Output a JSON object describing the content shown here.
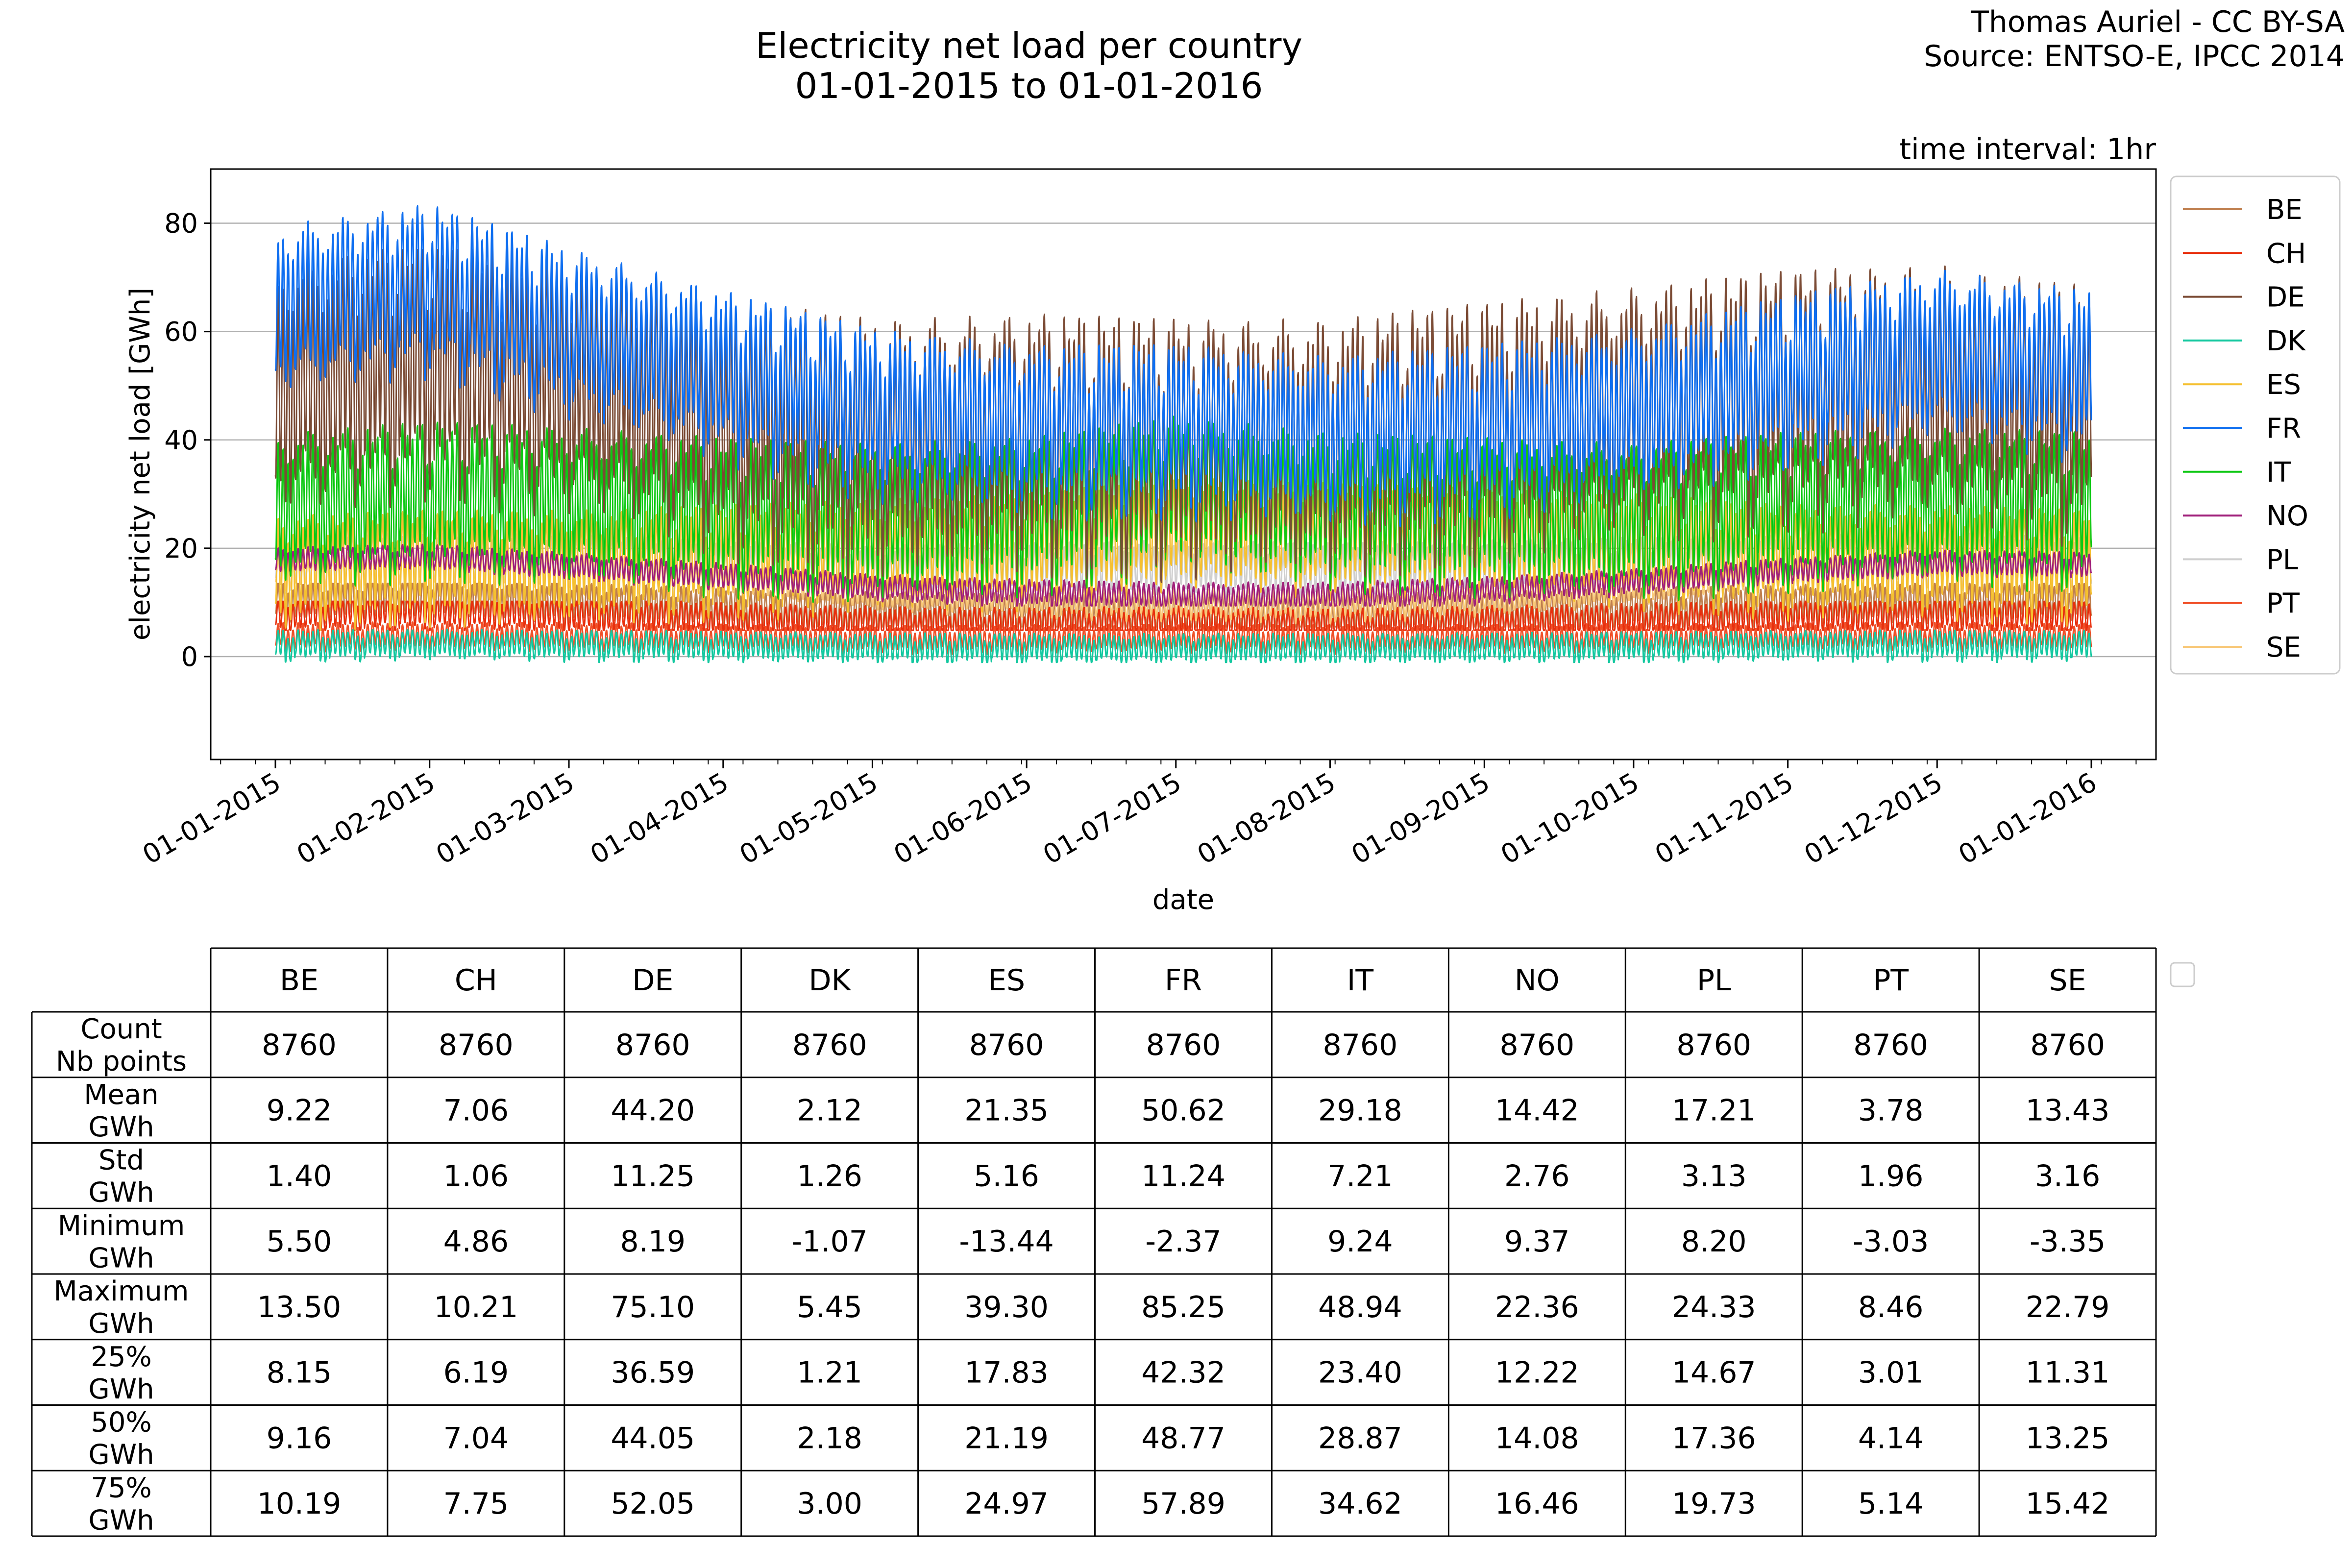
{
  "chart_data": {
    "type": "line",
    "title": "Electricity net load per country",
    "subtitle": "01-01-2015 to 01-01-2016",
    "credit": [
      "Thomas Auriel - CC BY-SA",
      "Source: ENTSO-E, IPCC 2014"
    ],
    "interval_note": "time interval: 1hr",
    "xlabel": "date",
    "ylabel": "electricity net load [GWh]",
    "xlim": [
      "2014-12-19",
      "2016-01-14"
    ],
    "ylim": [
      -19,
      90
    ],
    "yticks": [
      0,
      20,
      40,
      60,
      80
    ],
    "xticks": [
      "01-01-2015",
      "01-02-2015",
      "01-03-2015",
      "01-04-2015",
      "01-05-2015",
      "01-06-2015",
      "01-07-2015",
      "01-08-2015",
      "01-09-2015",
      "01-10-2015",
      "01-11-2015",
      "01-12-2015",
      "01-01-2016"
    ],
    "grid": "horizontal",
    "legend_position": "right",
    "series": [
      {
        "name": "BE",
        "color": "#bf7f4e",
        "x": [
          "2015-01-01",
          "2015-02-01",
          "2015-03-01",
          "2015-04-01",
          "2015-05-01",
          "2015-06-01",
          "2015-07-01",
          "2015-08-01",
          "2015-09-01",
          "2015-10-01",
          "2015-11-01",
          "2015-12-01",
          "2016-01-01"
        ],
        "values": [
          10.5,
          11,
          10.2,
          9.4,
          8.6,
          8.3,
          8.5,
          8.1,
          8.7,
          9.3,
          9.9,
          10.3,
          10.4
        ],
        "amplitude": 3,
        "min": 5.5,
        "max": 13.5
      },
      {
        "name": "CH",
        "color": "#e8300e",
        "x": [
          "2015-01-01",
          "2015-02-01",
          "2015-03-01",
          "2015-04-01",
          "2015-05-01",
          "2015-06-01",
          "2015-07-01",
          "2015-08-01",
          "2015-09-01",
          "2015-10-01",
          "2015-11-01",
          "2015-12-01",
          "2016-01-01"
        ],
        "values": [
          8,
          8.5,
          8,
          7.2,
          6.5,
          6.2,
          6.5,
          6,
          6.6,
          7,
          7.6,
          8,
          7.6
        ],
        "amplitude": 2.5,
        "min": 4.86,
        "max": 10.21
      },
      {
        "name": "DE",
        "color": "#7b4b35",
        "x": [
          "2015-01-01",
          "2015-02-01",
          "2015-03-01",
          "2015-04-01",
          "2015-05-01",
          "2015-06-01",
          "2015-07-01",
          "2015-08-01",
          "2015-09-01",
          "2015-10-01",
          "2015-11-01",
          "2015-12-01",
          "2016-01-01"
        ],
        "values": [
          52,
          57,
          53,
          46,
          42,
          43,
          42,
          42,
          45,
          48,
          51,
          52,
          48
        ],
        "amplitude": 18,
        "min": 8.19,
        "max": 75.1
      },
      {
        "name": "DK",
        "color": "#14c8a0",
        "x": [
          "2015-01-01",
          "2015-02-01",
          "2015-03-01",
          "2015-04-01",
          "2015-05-01",
          "2015-06-01",
          "2015-07-01",
          "2015-08-01",
          "2015-09-01",
          "2015-10-01",
          "2015-11-01",
          "2015-12-01",
          "2016-01-01"
        ],
        "values": [
          2.4,
          2.6,
          2.4,
          2.2,
          1.9,
          1.8,
          1.8,
          1.8,
          1.9,
          2.1,
          2.3,
          2.4,
          2.3
        ],
        "amplitude": 2.2,
        "min": -1.07,
        "max": 5.45
      },
      {
        "name": "ES",
        "color": "#f5c030",
        "x": [
          "2015-01-01",
          "2015-02-01",
          "2015-03-01",
          "2015-04-01",
          "2015-05-01",
          "2015-06-01",
          "2015-07-01",
          "2015-08-01",
          "2015-09-01",
          "2015-10-01",
          "2015-11-01",
          "2015-12-01",
          "2016-01-01"
        ],
        "values": [
          17,
          18,
          18,
          19,
          20,
          21,
          24,
          23,
          22,
          21,
          19,
          19,
          18
        ],
        "amplitude": 8,
        "min": -13.44,
        "max": 39.3
      },
      {
        "name": "FR",
        "color": "#0e6ef0",
        "x": [
          "2015-01-01",
          "2015-02-01",
          "2015-03-01",
          "2015-04-01",
          "2015-05-01",
          "2015-06-01",
          "2015-07-01",
          "2015-08-01",
          "2015-09-01",
          "2015-10-01",
          "2015-11-01",
          "2015-12-01",
          "2016-01-01"
        ],
        "values": [
          66,
          70,
          62,
          54,
          47,
          44,
          44,
          42,
          44,
          47,
          53,
          58,
          54
        ],
        "amplitude": 12,
        "min": -2.37,
        "max": 85.25
      },
      {
        "name": "IT",
        "color": "#0ec814",
        "x": [
          "2015-01-01",
          "2015-02-01",
          "2015-03-01",
          "2015-04-01",
          "2015-05-01",
          "2015-06-01",
          "2015-07-01",
          "2015-08-01",
          "2015-09-01",
          "2015-10-01",
          "2015-11-01",
          "2015-12-01",
          "2016-01-01"
        ],
        "values": [
          29,
          31,
          30,
          28,
          27,
          28,
          32,
          29,
          28,
          27,
          29,
          30,
          29
        ],
        "amplitude": 11,
        "min": 9.24,
        "max": 48.94
      },
      {
        "name": "NO",
        "color": "#a0207a",
        "x": [
          "2015-01-01",
          "2015-02-01",
          "2015-03-01",
          "2015-04-01",
          "2015-05-01",
          "2015-06-01",
          "2015-07-01",
          "2015-08-01",
          "2015-09-01",
          "2015-10-01",
          "2015-11-01",
          "2015-12-01",
          "2016-01-01"
        ],
        "values": [
          18,
          18.5,
          17,
          15,
          13,
          12,
          11.5,
          11.5,
          12.5,
          14,
          16,
          17.5,
          17
        ],
        "amplitude": 2,
        "min": 9.37,
        "max": 22.36
      },
      {
        "name": "PL",
        "color": "#cfcfcf",
        "x": [
          "2015-01-01",
          "2015-02-01",
          "2015-03-01",
          "2015-04-01",
          "2015-05-01",
          "2015-06-01",
          "2015-07-01",
          "2015-08-01",
          "2015-09-01",
          "2015-10-01",
          "2015-11-01",
          "2015-12-01",
          "2016-01-01"
        ],
        "values": [
          18,
          18.5,
          18,
          17,
          16,
          16.5,
          17,
          16.5,
          17,
          17.5,
          18,
          18.5,
          17.5
        ],
        "amplitude": 4,
        "min": 8.2,
        "max": 24.33
      },
      {
        "name": "PT",
        "color": "#f05028",
        "x": [
          "2015-01-01",
          "2015-02-01",
          "2015-03-01",
          "2015-04-01",
          "2015-05-01",
          "2015-06-01",
          "2015-07-01",
          "2015-08-01",
          "2015-09-01",
          "2015-10-01",
          "2015-11-01",
          "2015-12-01",
          "2016-01-01"
        ],
        "values": [
          4,
          4.2,
          4,
          3.8,
          3.5,
          3.6,
          3.8,
          3.6,
          3.7,
          3.8,
          4,
          4.1,
          3.9
        ],
        "amplitude": 2,
        "min": -3.03,
        "max": 8.46
      },
      {
        "name": "SE",
        "color": "#f8c878",
        "x": [
          "2015-01-01",
          "2015-02-01",
          "2015-03-01",
          "2015-04-01",
          "2015-05-01",
          "2015-06-01",
          "2015-07-01",
          "2015-08-01",
          "2015-09-01",
          "2015-10-01",
          "2015-11-01",
          "2015-12-01",
          "2016-01-01"
        ],
        "values": [
          16,
          17,
          16,
          14,
          12,
          11,
          10,
          10,
          11,
          13,
          15,
          16,
          16
        ],
        "amplitude": 2.5,
        "min": -3.35,
        "max": 22.79
      }
    ],
    "table": {
      "columns": [
        "BE",
        "CH",
        "DE",
        "DK",
        "ES",
        "FR",
        "IT",
        "NO",
        "PL",
        "PT",
        "SE"
      ],
      "rows": [
        {
          "label": [
            "Count",
            "Nb points"
          ],
          "cells": [
            "8760",
            "8760",
            "8760",
            "8760",
            "8760",
            "8760",
            "8760",
            "8760",
            "8760",
            "8760",
            "8760"
          ]
        },
        {
          "label": [
            "Mean",
            "GWh"
          ],
          "cells": [
            "9.22",
            "7.06",
            "44.20",
            "2.12",
            "21.35",
            "50.62",
            "29.18",
            "14.42",
            "17.21",
            "3.78",
            "13.43"
          ]
        },
        {
          "label": [
            "Std",
            "GWh"
          ],
          "cells": [
            "1.40",
            "1.06",
            "11.25",
            "1.26",
            "5.16",
            "11.24",
            "7.21",
            "2.76",
            "3.13",
            "1.96",
            "3.16"
          ]
        },
        {
          "label": [
            "Minimum",
            "GWh"
          ],
          "cells": [
            "5.50",
            "4.86",
            "8.19",
            "-1.07",
            "-13.44",
            "-2.37",
            "9.24",
            "9.37",
            "8.20",
            "-3.03",
            "-3.35"
          ]
        },
        {
          "label": [
            "Maximum",
            "GWh"
          ],
          "cells": [
            "13.50",
            "10.21",
            "75.10",
            "5.45",
            "39.30",
            "85.25",
            "48.94",
            "22.36",
            "24.33",
            "8.46",
            "22.79"
          ]
        },
        {
          "label": [
            "25%",
            "GWh"
          ],
          "cells": [
            "8.15",
            "6.19",
            "36.59",
            "1.21",
            "17.83",
            "42.32",
            "23.40",
            "12.22",
            "14.67",
            "3.01",
            "11.31"
          ]
        },
        {
          "label": [
            "50%",
            "GWh"
          ],
          "cells": [
            "9.16",
            "7.04",
            "44.05",
            "2.18",
            "21.19",
            "48.77",
            "28.87",
            "14.08",
            "17.36",
            "4.14",
            "13.25"
          ]
        },
        {
          "label": [
            "75%",
            "GWh"
          ],
          "cells": [
            "10.19",
            "7.75",
            "52.05",
            "3.00",
            "24.97",
            "57.89",
            "34.62",
            "16.46",
            "19.73",
            "5.14",
            "15.42"
          ]
        }
      ]
    }
  }
}
